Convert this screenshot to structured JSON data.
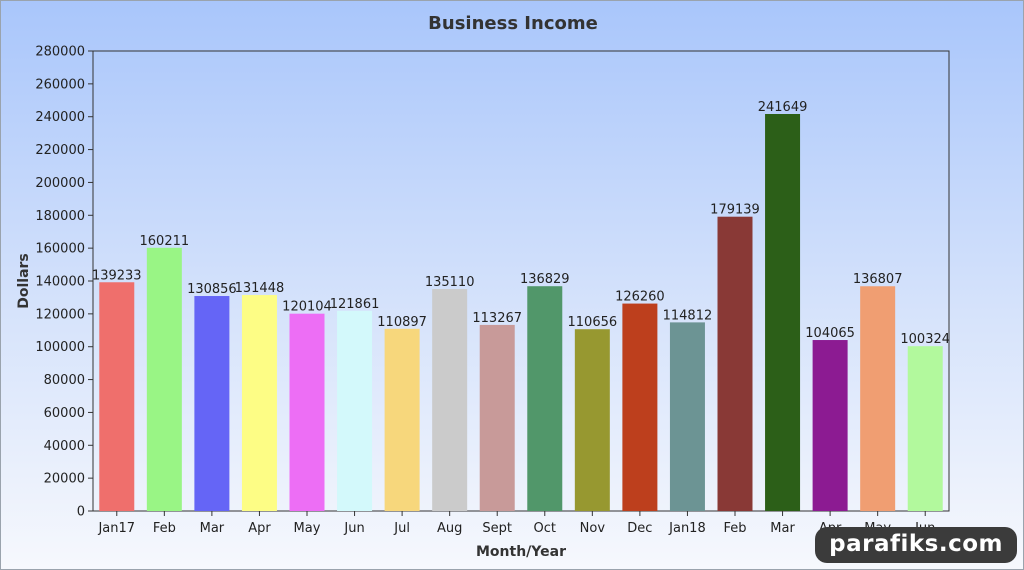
{
  "chart_data": {
    "type": "bar",
    "title": "Business Income",
    "xlabel": "Month/Year",
    "ylabel": "Dollars",
    "ylim": [
      0,
      280000
    ],
    "yticks": [
      0,
      20000,
      40000,
      60000,
      80000,
      100000,
      120000,
      140000,
      160000,
      180000,
      200000,
      220000,
      240000,
      260000,
      280000
    ],
    "categories": [
      "Jan17",
      "Feb",
      "Mar",
      "Apr",
      "May",
      "Jun",
      "Jul",
      "Aug",
      "Sept",
      "Oct",
      "Nov",
      "Dec",
      "Jan18",
      "Feb",
      "Mar",
      "Apr",
      "May",
      "Jun"
    ],
    "values": [
      139233,
      160211,
      130856,
      131448,
      120104,
      121861,
      110897,
      135110,
      113267,
      136829,
      110656,
      126260,
      114812,
      179139,
      241649,
      104065,
      136807,
      100324
    ],
    "colors": [
      "#ef6f6c",
      "#99f585",
      "#6565f6",
      "#fdfd85",
      "#ed6ef5",
      "#d3f9fb",
      "#f7d77c",
      "#cbcbcb",
      "#c89a99",
      "#51976a",
      "#979830",
      "#bd3f1d",
      "#6c9494",
      "#893936",
      "#2c5f18",
      "#8c1b92",
      "#f09e72",
      "#b2f99d"
    ],
    "data_labels": true,
    "grid": false,
    "legend": "none"
  },
  "watermark": "parafiks.com"
}
